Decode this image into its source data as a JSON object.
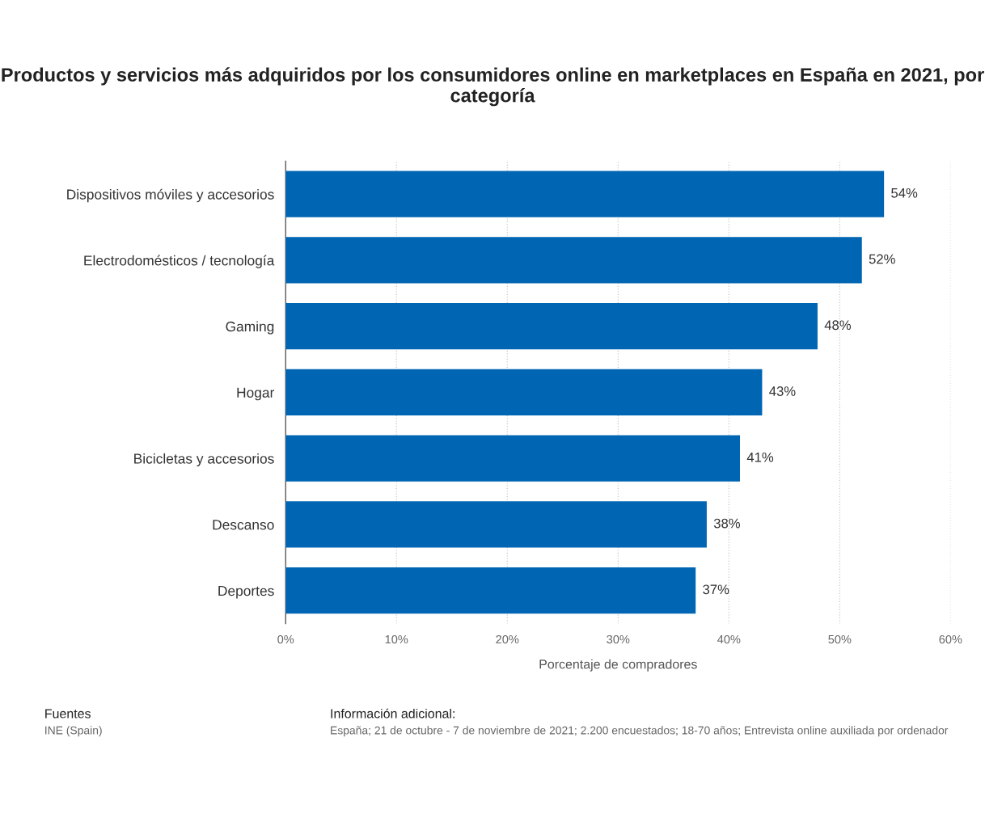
{
  "chart_data": {
    "type": "bar",
    "orientation": "horizontal",
    "title": "Productos y servicios más adquiridos por los consumidores online en marketplaces en España en 2021, por categoría",
    "categories": [
      "Dispositivos móviles y accesorios",
      "Electrodomésticos / tecnología",
      "Gaming",
      "Hogar",
      "Bicicletas y accesorios",
      "Descanso",
      "Deportes"
    ],
    "values": [
      54,
      52,
      48,
      43,
      41,
      38,
      37
    ],
    "color": "#0066b3",
    "value_labels": [
      "54%",
      "52%",
      "48%",
      "43%",
      "41%",
      "38%",
      "37%"
    ],
    "xlabel": "Porcentaje de compradores",
    "xlim": [
      0,
      60
    ],
    "xticks": [
      {
        "value": 0,
        "label": "0%"
      },
      {
        "value": 10,
        "label": "10%"
      },
      {
        "value": 20,
        "label": "20%"
      },
      {
        "value": 30,
        "label": "30%"
      },
      {
        "value": 40,
        "label": "40%"
      },
      {
        "value": 50,
        "label": "50%"
      },
      {
        "value": 60,
        "label": "60%"
      }
    ],
    "grid": "x",
    "annotations": [
      "Fuentes",
      "INE (Spain)",
      "Información adicional:",
      "España; 21 de octubre - 7 de noviembre de 2021; 2.200 encuestados; 18-70 años; Entrevista online auxiliada por ordenador"
    ]
  }
}
